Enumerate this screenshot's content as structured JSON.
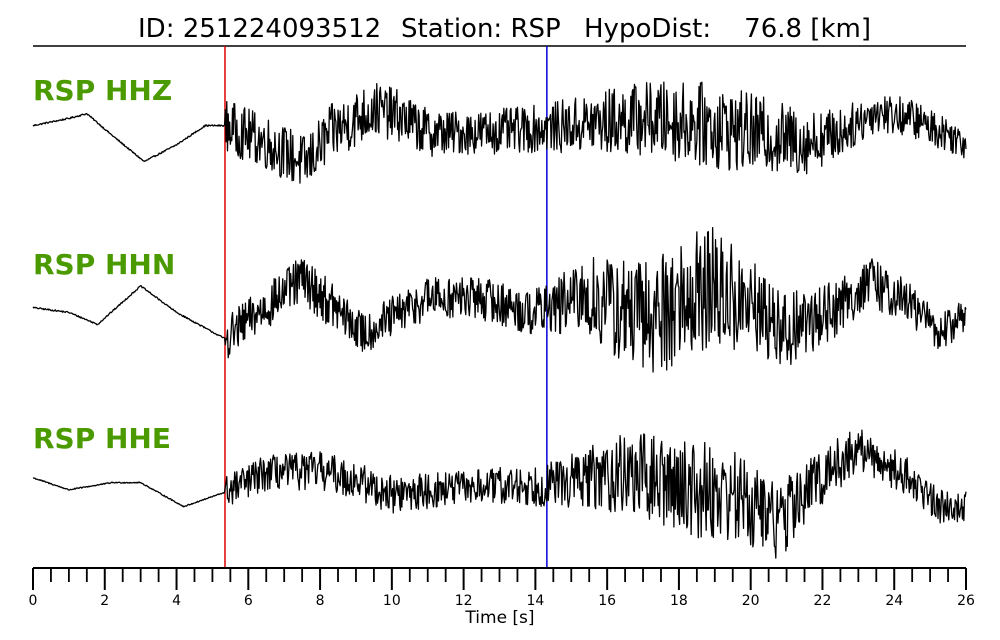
{
  "title": {
    "id": "ID: 251224093512",
    "station": "Station: RSP",
    "hypodist": "HypoDist:    76.8 [km]"
  },
  "colors": {
    "label": "#4a9a00",
    "trace": "#000000",
    "p_pick": "#e00000",
    "s_pick": "#0000e0"
  },
  "chart_data": {
    "type": "line",
    "xlabel": "Time [s]",
    "xlim": [
      0,
      26
    ],
    "xticks": [
      0,
      2,
      4,
      6,
      8,
      10,
      12,
      14,
      16,
      18,
      20,
      22,
      24,
      26
    ],
    "minor_tick_step": 0.5,
    "picks": [
      {
        "kind": "P",
        "time": 5.35,
        "color": "#e00000"
      },
      {
        "kind": "S",
        "time": 14.32,
        "color": "#0000e0"
      }
    ],
    "series": [
      {
        "name": "RSP HHZ",
        "noise_onset": 5.35,
        "envelope": [
          [
            0,
            0.2
          ],
          [
            5.3,
            0.2
          ],
          [
            5.4,
            0.55
          ],
          [
            9,
            0.6
          ],
          [
            12,
            0.45
          ],
          [
            14.3,
            0.5
          ],
          [
            16.5,
            0.75
          ],
          [
            19,
            0.9
          ],
          [
            21,
            0.75
          ],
          [
            23,
            0.45
          ],
          [
            26,
            0.35
          ]
        ],
        "base": [
          [
            0,
            0.05
          ],
          [
            1,
            0.2
          ],
          [
            1.5,
            0.3
          ],
          [
            2.2,
            -0.15
          ],
          [
            3.1,
            -0.7
          ],
          [
            4,
            -0.35
          ],
          [
            4.8,
            0.05
          ],
          [
            5.35,
            0.05
          ],
          [
            6.5,
            -0.3
          ],
          [
            7.6,
            -0.75
          ],
          [
            8.3,
            -0.1
          ],
          [
            9.5,
            0.4
          ],
          [
            10.2,
            0.25
          ],
          [
            11,
            -0.1
          ],
          [
            12,
            -0.1
          ],
          [
            13.5,
            -0.05
          ],
          [
            15,
            0.05
          ],
          [
            17,
            0.2
          ],
          [
            18.5,
            0.1
          ],
          [
            20,
            -0.1
          ],
          [
            21.5,
            -0.3
          ],
          [
            22.5,
            -0.1
          ],
          [
            23.5,
            0.35
          ],
          [
            24.5,
            0.2
          ],
          [
            26,
            -0.3
          ]
        ]
      },
      {
        "name": "RSP HHN",
        "noise_onset": 5.35,
        "envelope": [
          [
            0,
            0.2
          ],
          [
            5.3,
            0.2
          ],
          [
            5.4,
            0.45
          ],
          [
            8,
            0.5
          ],
          [
            9,
            0.45
          ],
          [
            12,
            0.45
          ],
          [
            14.3,
            0.5
          ],
          [
            16.5,
            1.2
          ],
          [
            18.8,
            1.4
          ],
          [
            20.5,
            0.85
          ],
          [
            23,
            0.55
          ],
          [
            26,
            0.35
          ]
        ],
        "base": [
          [
            0,
            0.05
          ],
          [
            1,
            -0.05
          ],
          [
            1.8,
            -0.3
          ],
          [
            3,
            0.5
          ],
          [
            4,
            -0.05
          ],
          [
            5.35,
            -0.6
          ],
          [
            7.5,
            0.65
          ],
          [
            9.2,
            -0.5
          ],
          [
            11,
            0.25
          ],
          [
            12.5,
            0.25
          ],
          [
            13.8,
            -0.05
          ],
          [
            15.5,
            0.25
          ],
          [
            17,
            -0.2
          ],
          [
            18.8,
            0.45
          ],
          [
            20,
            0.05
          ],
          [
            21,
            -0.45
          ],
          [
            22.5,
            0.1
          ],
          [
            23.3,
            0.6
          ],
          [
            24.5,
            0.1
          ],
          [
            25.3,
            -0.5
          ],
          [
            26,
            -0.05
          ]
        ]
      },
      {
        "name": "RSP HHE",
        "noise_onset": 5.35,
        "envelope": [
          [
            0,
            0.15
          ],
          [
            5.3,
            0.15
          ],
          [
            5.4,
            0.35
          ],
          [
            8,
            0.4
          ],
          [
            10,
            0.4
          ],
          [
            12,
            0.35
          ],
          [
            14.3,
            0.45
          ],
          [
            16.5,
            0.85
          ],
          [
            18.5,
            1.05
          ],
          [
            20.5,
            0.85
          ],
          [
            23,
            0.45
          ],
          [
            26,
            0.35
          ]
        ],
        "base": [
          [
            0,
            0.15
          ],
          [
            1,
            -0.1
          ],
          [
            2.2,
            0.05
          ],
          [
            3,
            0.05
          ],
          [
            4.2,
            -0.45
          ],
          [
            5.35,
            -0.15
          ],
          [
            6.5,
            0.25
          ],
          [
            8,
            0.3
          ],
          [
            9,
            0.1
          ],
          [
            10,
            -0.2
          ],
          [
            12,
            -0.05
          ],
          [
            14.3,
            0.0
          ],
          [
            15.5,
            0.15
          ],
          [
            16.5,
            0.25
          ],
          [
            18,
            0.0
          ],
          [
            19.5,
            -0.2
          ],
          [
            20.8,
            -0.75
          ],
          [
            22,
            0.2
          ],
          [
            23,
            0.75
          ],
          [
            24.3,
            0.2
          ],
          [
            25.3,
            -0.45
          ],
          [
            26,
            -0.4
          ]
        ]
      }
    ]
  }
}
